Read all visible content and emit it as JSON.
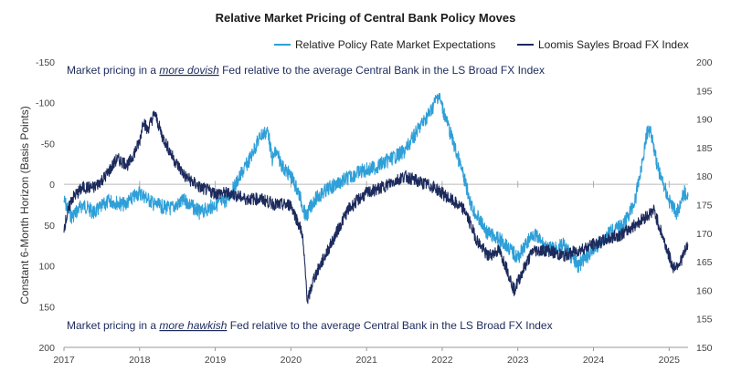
{
  "chart_data": {
    "type": "line",
    "title": "Relative Market Pricing of Central Bank Policy Moves",
    "ylabel": "Constant 6-Month Horizon (Basis Points)",
    "y2label": "",
    "x_ticks": [
      "2017",
      "2018",
      "2019",
      "2020",
      "2021",
      "2022",
      "2023",
      "2024",
      "2025"
    ],
    "y_left": {
      "range": [
        -150,
        200
      ],
      "inverted": true,
      "ticks": [
        "-150",
        "-100",
        "-50",
        "0",
        "50",
        "100",
        "150",
        "200"
      ]
    },
    "y_right": {
      "range": [
        150,
        200
      ],
      "ticks": [
        "150",
        "155",
        "160",
        "165",
        "170",
        "175",
        "180",
        "185",
        "190",
        "195",
        "200"
      ]
    },
    "legend_position": "top-right",
    "series": [
      {
        "name": "Relative Policy Rate Market Expectations",
        "color": "#2e9fd8",
        "axis": "left",
        "x": [
          2017.0,
          2017.1,
          2017.25,
          2017.4,
          2017.6,
          2017.8,
          2018.0,
          2018.2,
          2018.4,
          2018.6,
          2018.8,
          2019.0,
          2019.15,
          2019.3,
          2019.45,
          2019.6,
          2019.7,
          2019.75,
          2019.8,
          2019.9,
          2020.0,
          2020.1,
          2020.2,
          2020.3,
          2020.5,
          2020.7,
          2020.9,
          2021.1,
          2021.3,
          2021.5,
          2021.7,
          2021.85,
          2021.95,
          2022.05,
          2022.15,
          2022.25,
          2022.4,
          2022.6,
          2022.8,
          2023.0,
          2023.2,
          2023.4,
          2023.6,
          2023.8,
          2024.0,
          2024.2,
          2024.4,
          2024.55,
          2024.65,
          2024.7,
          2024.75,
          2024.85,
          2025.0,
          2025.1,
          2025.2,
          2025.25
        ],
        "values": [
          20,
          40,
          25,
          35,
          20,
          25,
          10,
          25,
          30,
          20,
          35,
          25,
          20,
          -5,
          -30,
          -60,
          -65,
          -30,
          -40,
          -20,
          -10,
          10,
          40,
          20,
          5,
          -5,
          -15,
          -20,
          -30,
          -40,
          -70,
          -90,
          -110,
          -80,
          -50,
          -20,
          30,
          60,
          70,
          90,
          60,
          80,
          75,
          100,
          80,
          60,
          50,
          20,
          -30,
          -60,
          -70,
          -20,
          20,
          35,
          10,
          15
        ]
      },
      {
        "name": "Loomis Sayles Broad FX Index",
        "color": "#1c2a5c",
        "axis": "right",
        "x": [
          2017.0,
          2017.1,
          2017.25,
          2017.4,
          2017.55,
          2017.7,
          2017.85,
          2018.0,
          2018.05,
          2018.1,
          2018.2,
          2018.3,
          2018.45,
          2018.6,
          2018.8,
          2019.0,
          2019.2,
          2019.4,
          2019.6,
          2019.8,
          2020.0,
          2020.15,
          2020.22,
          2020.3,
          2020.45,
          2020.6,
          2020.75,
          2020.9,
          2021.0,
          2021.2,
          2021.35,
          2021.5,
          2021.7,
          2021.9,
          2022.0,
          2022.1,
          2022.2,
          2022.3,
          2022.45,
          2022.6,
          2022.75,
          2022.85,
          2022.95,
          2023.05,
          2023.2,
          2023.4,
          2023.6,
          2023.8,
          2024.0,
          2024.2,
          2024.4,
          2024.6,
          2024.8,
          2024.95,
          2025.05,
          2025.15,
          2025.25
        ],
        "values": [
          171,
          176,
          178,
          178,
          180,
          183,
          182,
          186,
          190,
          188,
          191,
          187,
          183,
          180,
          178,
          177,
          177,
          176,
          176,
          175,
          175,
          170,
          158,
          162,
          166,
          170,
          174,
          176,
          177,
          178,
          179,
          180,
          179,
          178,
          177,
          176,
          175,
          174,
          169,
          166,
          167,
          164,
          160,
          163,
          167,
          167,
          166,
          167,
          168,
          169,
          170,
          172,
          174,
          168,
          164,
          165,
          168
        ]
      }
    ],
    "annotations": [
      {
        "pre": "Market pricing in a ",
        "em": "more dovish",
        "post": " Fed relative to the average Central Bank in the LS Broad FX Index",
        "position": "top"
      },
      {
        "pre": "Market pricing in a ",
        "em": "more hawkish",
        "post": " Fed relative to the average Central Bank in the LS Broad FX Index",
        "position": "bottom"
      }
    ]
  }
}
